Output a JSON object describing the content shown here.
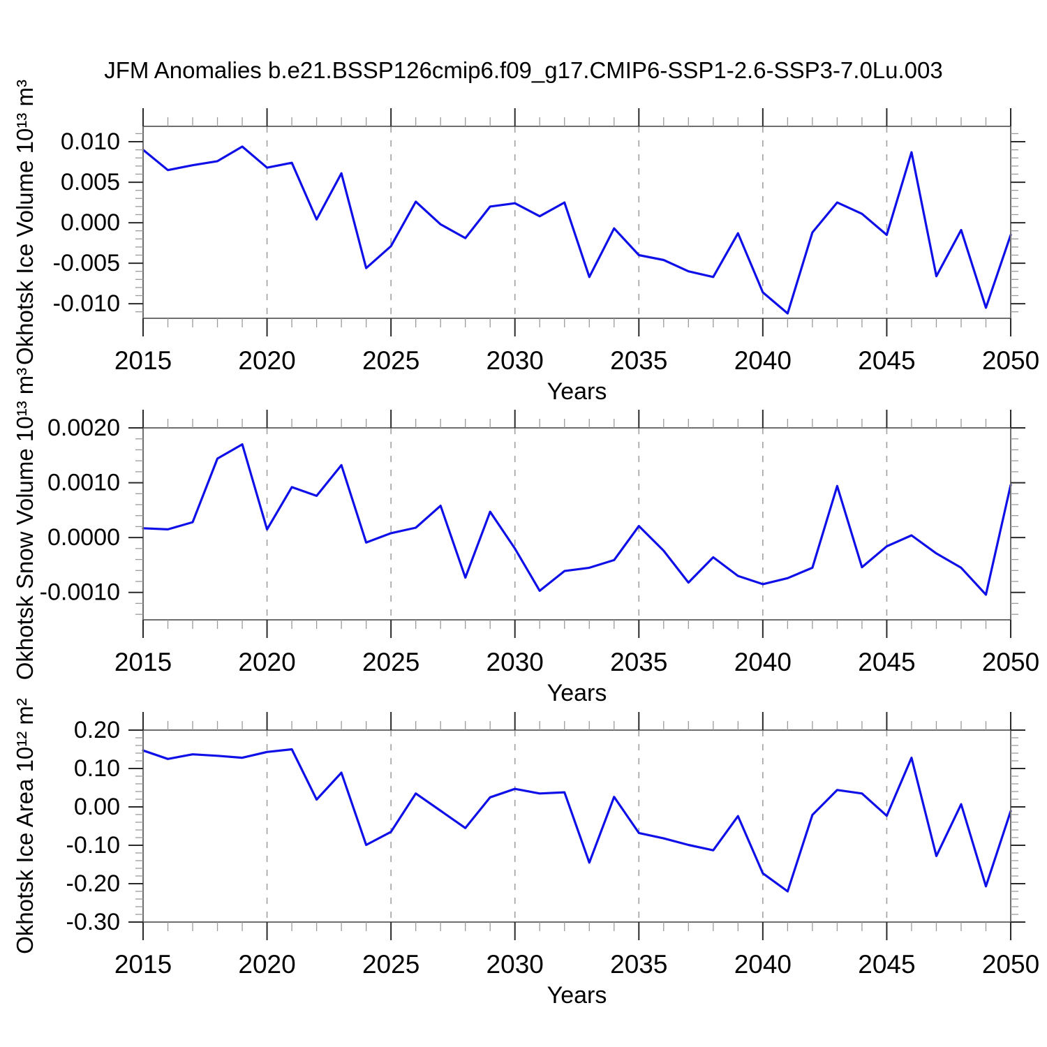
{
  "title": "JFM Anomalies b.e21.BSSP126cmip6.f09_g17.CMIP6-SSP1-2.6-SSP3-7.0Lu.003",
  "colors": {
    "line": "#0f0fe8",
    "grid": "#a0a0a0",
    "frame": "#6e6e6e",
    "tick_major": "#2a2a2a",
    "tick_minor": "#9a9a9a",
    "text": "#000000"
  },
  "chart_data": [
    {
      "type": "line",
      "ylabel": "Okhotsk Ice Volume 10¹³ m³",
      "xlabel": "Years",
      "x": [
        2015,
        2016,
        2017,
        2018,
        2019,
        2020,
        2021,
        2022,
        2023,
        2024,
        2025,
        2026,
        2027,
        2028,
        2029,
        2030,
        2031,
        2032,
        2033,
        2034,
        2035,
        2036,
        2037,
        2038,
        2039,
        2040,
        2041,
        2042,
        2043,
        2044,
        2045,
        2046,
        2047,
        2048,
        2049,
        2050
      ],
      "values": [
        0.009,
        0.0065,
        0.0071,
        0.0076,
        0.0094,
        0.0068,
        0.0074,
        0.0004,
        0.0061,
        -0.0056,
        -0.0029,
        0.0026,
        -0.0002,
        -0.0019,
        0.002,
        0.0024,
        0.0008,
        0.0025,
        -0.0067,
        -0.0007,
        -0.004,
        -0.0046,
        -0.006,
        -0.0067,
        -0.0013,
        -0.0086,
        -0.0112,
        -0.0012,
        0.0025,
        0.0011,
        -0.0015,
        0.0087,
        -0.0066,
        -0.0009,
        -0.0105,
        -0.0015
      ],
      "xlim": [
        2015,
        2050
      ],
      "ylim": [
        -0.0118,
        0.0119
      ],
      "xticks": [
        2015,
        2020,
        2025,
        2030,
        2035,
        2040,
        2045,
        2050
      ],
      "xtick_labels": [
        "2015",
        "2020",
        "2025",
        "2030",
        "2035",
        "2040",
        "2045",
        "2050"
      ],
      "x_minor_step": 1,
      "yticks": [
        0.01,
        0.005,
        0.0,
        -0.005,
        -0.01
      ],
      "ytick_labels": [
        "0.010",
        "0.005",
        "0.000",
        "-0.005",
        "-0.010"
      ],
      "y_minor_step": 0.001,
      "gridlines_x": [
        2020,
        2025,
        2030,
        2035,
        2040,
        2045
      ],
      "grid": true,
      "legend": "none"
    },
    {
      "type": "line",
      "ylabel": "Okhotsk Snow Volume 10¹³ m³",
      "xlabel": "Years",
      "x": [
        2015,
        2016,
        2017,
        2018,
        2019,
        2020,
        2021,
        2022,
        2023,
        2024,
        2025,
        2026,
        2027,
        2028,
        2029,
        2030,
        2031,
        2032,
        2033,
        2034,
        2035,
        2036,
        2037,
        2038,
        2039,
        2040,
        2041,
        2042,
        2043,
        2044,
        2045,
        2046,
        2047,
        2048,
        2049,
        2050
      ],
      "values": [
        0.00017,
        0.00015,
        0.00028,
        0.00144,
        0.0017,
        0.00015,
        0.00092,
        0.00076,
        0.00132,
        -9e-05,
        8e-05,
        0.00018,
        0.00058,
        -0.00073,
        0.00047,
        -0.0002,
        -0.00097,
        -0.00061,
        -0.00055,
        -0.00041,
        0.00021,
        -0.00024,
        -0.00082,
        -0.00036,
        -0.0007,
        -0.00085,
        -0.00074,
        -0.00055,
        0.00094,
        -0.00054,
        -0.00016,
        4e-05,
        -0.00029,
        -0.00055,
        -0.00104,
        0.00096
      ],
      "xlim": [
        2015,
        2050
      ],
      "ylim": [
        -0.0015,
        0.002
      ],
      "xticks": [
        2015,
        2020,
        2025,
        2030,
        2035,
        2040,
        2045,
        2050
      ],
      "xtick_labels": [
        "2015",
        "2020",
        "2025",
        "2030",
        "2035",
        "2040",
        "2045",
        "2050"
      ],
      "x_minor_step": 1,
      "yticks": [
        0.002,
        0.001,
        0.0,
        -0.001
      ],
      "ytick_labels": [
        "0.0020",
        "0.0010",
        "0.0000",
        "-0.0010"
      ],
      "y_minor_step": 0.0002,
      "gridlines_x": [
        2020,
        2025,
        2030,
        2035,
        2040,
        2045
      ],
      "grid": true,
      "legend": "none"
    },
    {
      "type": "line",
      "ylabel": "Okhotsk Ice Area 10¹² m²",
      "xlabel": "Years",
      "x": [
        2015,
        2016,
        2017,
        2018,
        2019,
        2020,
        2021,
        2022,
        2023,
        2024,
        2025,
        2026,
        2027,
        2028,
        2029,
        2030,
        2031,
        2032,
        2033,
        2034,
        2035,
        2036,
        2037,
        2038,
        2039,
        2040,
        2041,
        2042,
        2043,
        2044,
        2045,
        2046,
        2047,
        2048,
        2049,
        2050
      ],
      "values": [
        0.147,
        0.125,
        0.137,
        0.133,
        0.128,
        0.143,
        0.15,
        0.019,
        0.089,
        -0.099,
        -0.065,
        0.035,
        -0.01,
        -0.055,
        0.025,
        0.047,
        0.035,
        0.038,
        -0.145,
        0.026,
        -0.068,
        -0.082,
        -0.099,
        -0.113,
        -0.024,
        -0.173,
        -0.22,
        -0.021,
        0.044,
        0.035,
        -0.023,
        0.128,
        -0.128,
        0.007,
        -0.207,
        -0.011
      ],
      "xlim": [
        2015,
        2050
      ],
      "ylim": [
        -0.3,
        0.2
      ],
      "xticks": [
        2015,
        2020,
        2025,
        2030,
        2035,
        2040,
        2045,
        2050
      ],
      "xtick_labels": [
        "2015",
        "2020",
        "2025",
        "2030",
        "2035",
        "2040",
        "2045",
        "2050"
      ],
      "x_minor_step": 1,
      "yticks": [
        0.2,
        0.1,
        0.0,
        -0.1,
        -0.2,
        -0.3
      ],
      "ytick_labels": [
        "0.20",
        "0.10",
        "0.00",
        "-0.10",
        "-0.20",
        "-0.30"
      ],
      "y_minor_step": 0.02,
      "gridlines_x": [
        2020,
        2025,
        2030,
        2035,
        2040,
        2045
      ],
      "grid": true,
      "legend": "none"
    }
  ]
}
